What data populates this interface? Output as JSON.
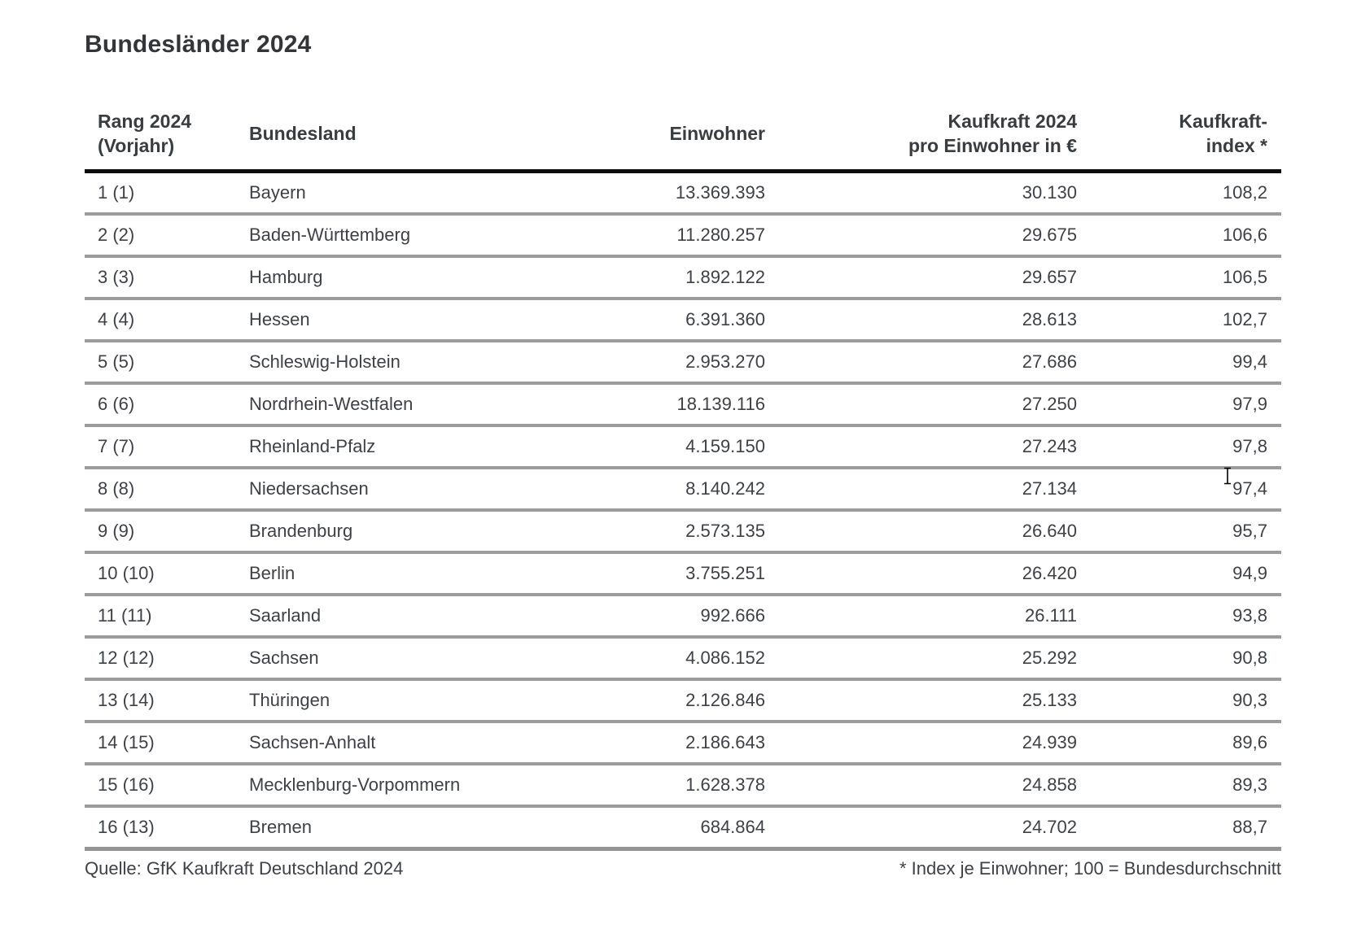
{
  "title": "Bundesländer 2024",
  "table": {
    "columns": [
      {
        "key": "rank",
        "label": "Rang 2024\n(Vorjahr)"
      },
      {
        "key": "state",
        "label": "Bundesland"
      },
      {
        "key": "population",
        "label": "Einwohner"
      },
      {
        "key": "purchasing_power",
        "label": "Kaufkraft 2024\npro Einwohner in €"
      },
      {
        "key": "index",
        "label": "Kaufkraft-\nindex *"
      }
    ],
    "rows": [
      {
        "rank": "1 (1)",
        "state": "Bayern",
        "population": "13.369.393",
        "purchasing_power": "30.130",
        "index": "108,2"
      },
      {
        "rank": "2 (2)",
        "state": "Baden-Württemberg",
        "population": "11.280.257",
        "purchasing_power": "29.675",
        "index": "106,6"
      },
      {
        "rank": "3 (3)",
        "state": "Hamburg",
        "population": "1.892.122",
        "purchasing_power": "29.657",
        "index": "106,5"
      },
      {
        "rank": "4 (4)",
        "state": "Hessen",
        "population": "6.391.360",
        "purchasing_power": "28.613",
        "index": "102,7"
      },
      {
        "rank": "5 (5)",
        "state": "Schleswig-Holstein",
        "population": "2.953.270",
        "purchasing_power": "27.686",
        "index": "99,4"
      },
      {
        "rank": "6 (6)",
        "state": "Nordrhein-Westfalen",
        "population": "18.139.116",
        "purchasing_power": "27.250",
        "index": "97,9"
      },
      {
        "rank": "7 (7)",
        "state": "Rheinland-Pfalz",
        "population": "4.159.150",
        "purchasing_power": "27.243",
        "index": "97,8"
      },
      {
        "rank": "8 (8)",
        "state": "Niedersachsen",
        "population": "8.140.242",
        "purchasing_power": "27.134",
        "index": "97,4"
      },
      {
        "rank": "9 (9)",
        "state": "Brandenburg",
        "population": "2.573.135",
        "purchasing_power": "26.640",
        "index": "95,7"
      },
      {
        "rank": "10 (10)",
        "state": "Berlin",
        "population": "3.755.251",
        "purchasing_power": "26.420",
        "index": "94,9"
      },
      {
        "rank": "11 (11)",
        "state": "Saarland",
        "population": "992.666",
        "purchasing_power": "26.111",
        "index": "93,8"
      },
      {
        "rank": "12 (12)",
        "state": "Sachsen",
        "population": "4.086.152",
        "purchasing_power": "25.292",
        "index": "90,8"
      },
      {
        "rank": "13 (14)",
        "state": "Thüringen",
        "population": "2.126.846",
        "purchasing_power": "25.133",
        "index": "90,3"
      },
      {
        "rank": "14 (15)",
        "state": "Sachsen-Anhalt",
        "population": "2.186.643",
        "purchasing_power": "24.939",
        "index": "89,6"
      },
      {
        "rank": "15 (16)",
        "state": "Mecklenburg-Vorpommern",
        "population": "1.628.378",
        "purchasing_power": "24.858",
        "index": "89,3"
      },
      {
        "rank": "16 (13)",
        "state": "Bremen",
        "population": "684.864",
        "purchasing_power": "24.702",
        "index": "88,7"
      }
    ]
  },
  "footer": {
    "source": "Quelle: GfK Kaufkraft Deutschland 2024",
    "footnote": "* Index je Einwohner; 100 = Bundesdurchschnitt"
  },
  "colors": {
    "text": "#3e4145",
    "header_rule": "#0d0d0d",
    "row_rule": "#9c9c9c",
    "background": "#ffffff"
  }
}
